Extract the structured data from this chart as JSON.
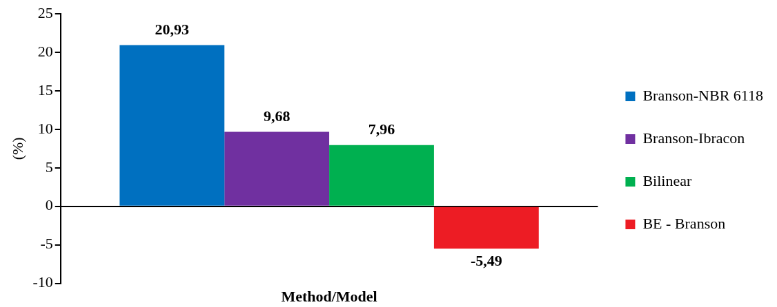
{
  "chart_data": {
    "type": "bar",
    "xlabel": "Method/Model",
    "ylabel": "(%)",
    "categories": [
      null
    ],
    "series": [
      {
        "name": "Branson-NBR 6118",
        "color": "#0070c0",
        "values": [
          20.93
        ],
        "value_labels": [
          "20,93"
        ]
      },
      {
        "name": "Branson-Ibracon",
        "color": "#7030a0",
        "values": [
          9.68
        ],
        "value_labels": [
          "9,68"
        ]
      },
      {
        "name": "Bilinear",
        "color": "#00b050",
        "values": [
          7.96
        ],
        "value_labels": [
          "7,96"
        ]
      },
      {
        "name": "BE - Branson",
        "color": "#ed1c24",
        "values": [
          -5.49
        ],
        "value_labels": [
          "-5,49"
        ]
      }
    ],
    "ylim": [
      -10,
      25
    ],
    "yticks": [
      -10,
      -5,
      0,
      5,
      10,
      15,
      20,
      25
    ],
    "legend": "right"
  }
}
